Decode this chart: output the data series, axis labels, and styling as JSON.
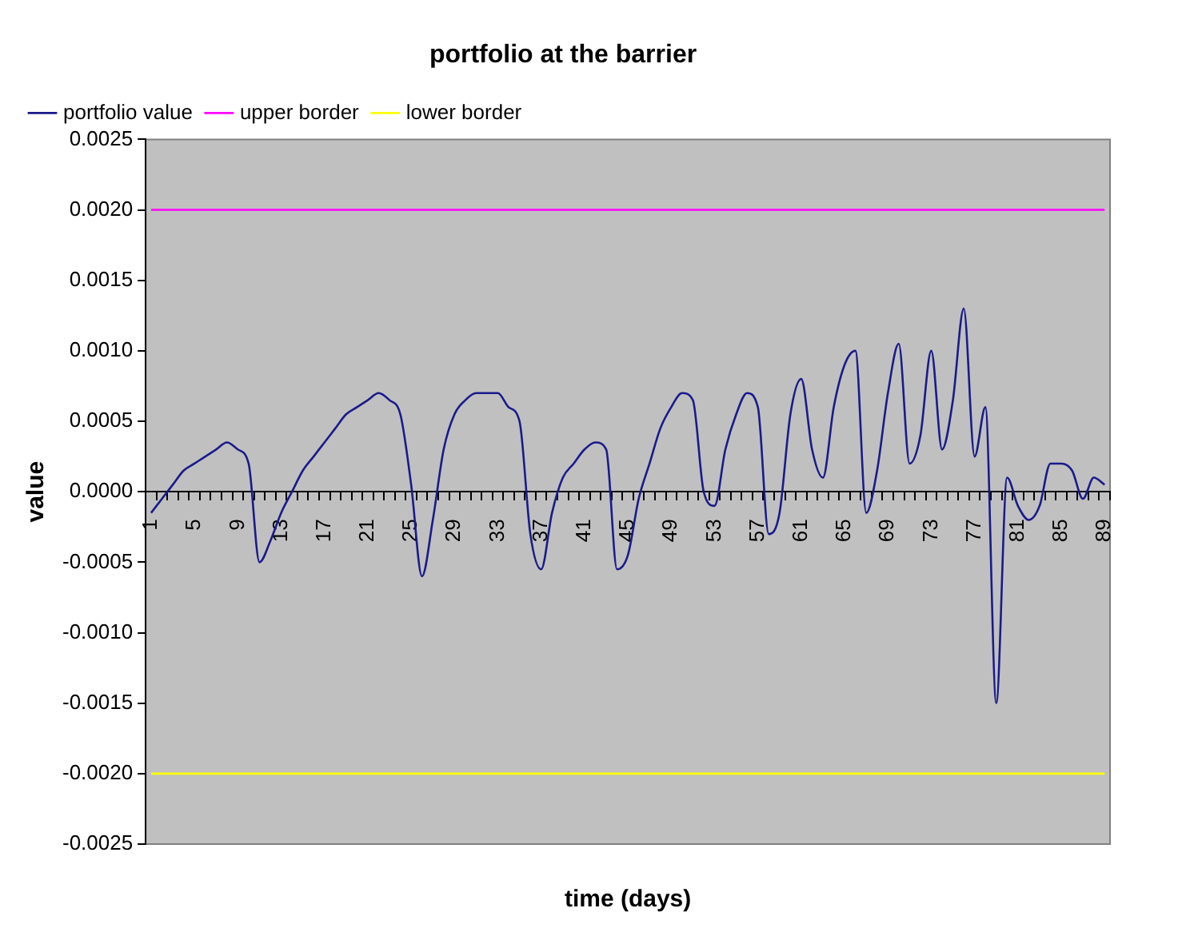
{
  "chart_data": {
    "type": "line",
    "title": "portfolio at the barrier",
    "xlabel": "time (days)",
    "ylabel": "value",
    "categories": [
      "1",
      null,
      null,
      null,
      "5",
      null,
      null,
      null,
      "9",
      null,
      null,
      null,
      "13",
      null,
      null,
      null,
      "17",
      null,
      null,
      null,
      "21",
      null,
      null,
      null,
      "25",
      null,
      null,
      null,
      "29",
      null,
      null,
      null,
      "33",
      null,
      null,
      null,
      "37",
      null,
      null,
      null,
      "41",
      null,
      null,
      null,
      "45",
      null,
      null,
      null,
      "49",
      null,
      null,
      null,
      "53",
      null,
      null,
      null,
      "57",
      null,
      null,
      null,
      "61",
      null,
      null,
      null,
      "65",
      null,
      null,
      null,
      "69",
      null,
      null,
      null,
      "73",
      null,
      null,
      null,
      "77",
      null,
      null,
      null,
      "81",
      null,
      null,
      null,
      "85",
      null,
      null,
      null,
      "89"
    ],
    "series": [
      {
        "name": "portfolio value",
        "color": "#1a1a8c",
        "values": [
          -0.00015,
          -5e-05,
          5e-05,
          0.00015,
          0.0002,
          0.00025,
          0.0003,
          0.00035,
          0.0003,
          0.0002,
          -0.0005,
          -0.00035,
          -0.00015,
          0.0,
          0.00015,
          0.00025,
          0.00035,
          0.00045,
          0.00055,
          0.0006,
          0.00065,
          0.0007,
          0.00065,
          0.00055,
          5e-05,
          -0.0006,
          -0.0002,
          0.0003,
          0.00055,
          0.00065,
          0.0007,
          0.0007,
          0.0007,
          0.0006,
          0.0005,
          -0.0003,
          -0.00055,
          -0.00015,
          0.0001,
          0.0002,
          0.0003,
          0.00035,
          0.0003,
          -0.00055,
          -0.00045,
          -5e-05,
          0.0002,
          0.00045,
          0.0006,
          0.0007,
          0.00065,
          0.0,
          -0.0001,
          0.0003,
          0.00055,
          0.0007,
          0.0006,
          -0.0003,
          -0.00015,
          0.00055,
          0.0008,
          0.0003,
          0.0001,
          0.0006,
          0.0009,
          0.001,
          -0.00015,
          0.00015,
          0.0007,
          0.00105,
          0.0002,
          0.0004,
          0.001,
          0.0003,
          0.00065,
          0.0013,
          0.00025,
          0.0006,
          -0.0015,
          0.0001,
          -0.0001,
          -0.0002,
          -0.0001,
          0.0002,
          0.0002,
          0.00015,
          -5e-05,
          0.0001,
          5e-05
        ]
      },
      {
        "name": "upper border",
        "color": "#ff00ff",
        "values": [
          0.002,
          0.002,
          0.002,
          0.002,
          0.002,
          0.002,
          0.002,
          0.002,
          0.002,
          0.002,
          0.002,
          0.002,
          0.002,
          0.002,
          0.002,
          0.002,
          0.002,
          0.002,
          0.002,
          0.002,
          0.002,
          0.002,
          0.002,
          0.002,
          0.002,
          0.002,
          0.002,
          0.002,
          0.002,
          0.002,
          0.002,
          0.002,
          0.002,
          0.002,
          0.002,
          0.002,
          0.002,
          0.002,
          0.002,
          0.002,
          0.002,
          0.002,
          0.002,
          0.002,
          0.002,
          0.002,
          0.002,
          0.002,
          0.002,
          0.002,
          0.002,
          0.002,
          0.002,
          0.002,
          0.002,
          0.002,
          0.002,
          0.002,
          0.002,
          0.002,
          0.002,
          0.002,
          0.002,
          0.002,
          0.002,
          0.002,
          0.002,
          0.002,
          0.002,
          0.002,
          0.002,
          0.002,
          0.002,
          0.002,
          0.002,
          0.002,
          0.002,
          0.002,
          0.002,
          0.002,
          0.002,
          0.002,
          0.002,
          0.002,
          0.002,
          0.002,
          0.002,
          0.002,
          0.002
        ]
      },
      {
        "name": "lower border",
        "color": "#ffff00",
        "values": [
          -0.002,
          -0.002,
          -0.002,
          -0.002,
          -0.002,
          -0.002,
          -0.002,
          -0.002,
          -0.002,
          -0.002,
          -0.002,
          -0.002,
          -0.002,
          -0.002,
          -0.002,
          -0.002,
          -0.002,
          -0.002,
          -0.002,
          -0.002,
          -0.002,
          -0.002,
          -0.002,
          -0.002,
          -0.002,
          -0.002,
          -0.002,
          -0.002,
          -0.002,
          -0.002,
          -0.002,
          -0.002,
          -0.002,
          -0.002,
          -0.002,
          -0.002,
          -0.002,
          -0.002,
          -0.002,
          -0.002,
          -0.002,
          -0.002,
          -0.002,
          -0.002,
          -0.002,
          -0.002,
          -0.002,
          -0.002,
          -0.002,
          -0.002,
          -0.002,
          -0.002,
          -0.002,
          -0.002,
          -0.002,
          -0.002,
          -0.002,
          -0.002,
          -0.002,
          -0.002,
          -0.002,
          -0.002,
          -0.002,
          -0.002,
          -0.002,
          -0.002,
          -0.002,
          -0.002,
          -0.002,
          -0.002,
          -0.002,
          -0.002,
          -0.002,
          -0.002,
          -0.002,
          -0.002,
          -0.002,
          -0.002,
          -0.002,
          -0.002,
          -0.002,
          -0.002,
          -0.002,
          -0.002,
          -0.002,
          -0.002,
          -0.002,
          -0.002,
          -0.002
        ]
      }
    ],
    "ylim": [
      -0.0025,
      0.0025
    ],
    "yticks": [
      {
        "value": -0.0025,
        "label": "-0.0025"
      },
      {
        "value": -0.002,
        "label": "-0.0020"
      },
      {
        "value": -0.0015,
        "label": "-0.0015"
      },
      {
        "value": -0.001,
        "label": "-0.0010"
      },
      {
        "value": -0.0005,
        "label": "-0.0005"
      },
      {
        "value": 0,
        "label": "0.0000"
      },
      {
        "value": 0.0005,
        "label": "0.0005"
      },
      {
        "value": 0.001,
        "label": "0.0010"
      },
      {
        "value": 0.0015,
        "label": "0.0015"
      },
      {
        "value": 0.002,
        "label": "0.0020"
      },
      {
        "value": 0.0025,
        "label": "0.0025"
      }
    ],
    "grid": false,
    "legend": "top left",
    "marker": "none",
    "line_style": "solid"
  }
}
